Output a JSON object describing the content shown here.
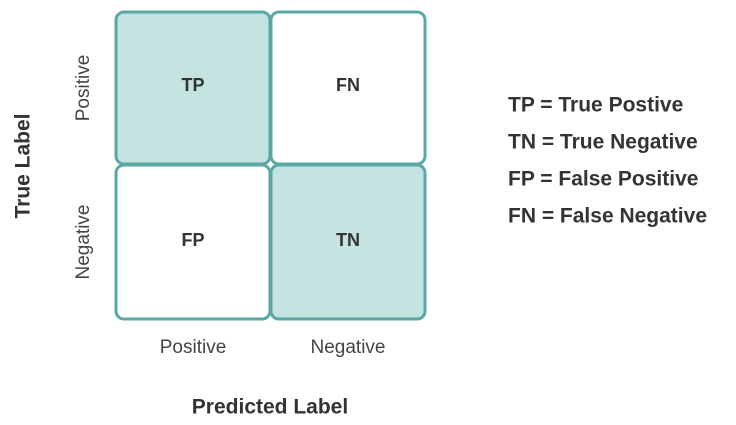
{
  "y_axis": {
    "title": "True Label",
    "labels": [
      "Positive",
      "Negative"
    ]
  },
  "x_axis": {
    "title": "Predicted Label",
    "labels": [
      "Positive",
      "Negative"
    ]
  },
  "cells": [
    [
      "TP",
      "FN"
    ],
    [
      "FP",
      "TN"
    ]
  ],
  "legend": [
    "TP = True Postive",
    "TN = True Negative",
    "FP = False Positive",
    "FN = False Negative"
  ]
}
